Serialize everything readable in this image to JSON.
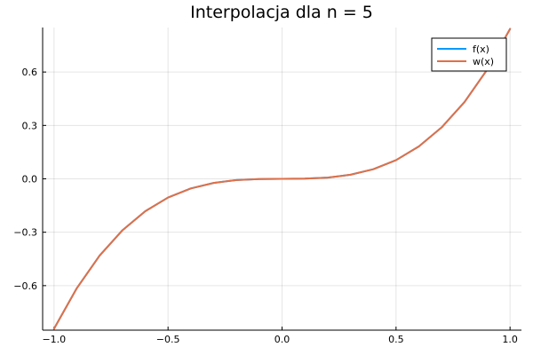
{
  "chart_data": {
    "type": "line",
    "title": "Interpolacja dla n = 5",
    "xlabel": "",
    "ylabel": "",
    "xlim": [
      -1.05,
      1.05
    ],
    "ylim": [
      -0.85,
      0.85
    ],
    "x_ticks": [
      -1.0,
      -0.5,
      0.0,
      0.5,
      1.0
    ],
    "x_tick_labels": [
      "−1.0",
      "−0.5",
      "0.0",
      "0.5",
      "1.0"
    ],
    "y_ticks": [
      -0.6,
      -0.3,
      0.0,
      0.3,
      0.6
    ],
    "y_tick_labels": [
      "−0.6",
      "−0.3",
      "0.0",
      "0.3",
      "0.6"
    ],
    "grid": true,
    "legend_position": "top-right",
    "x": [
      -1.0,
      -0.9,
      -0.8,
      -0.7,
      -0.6,
      -0.5,
      -0.4,
      -0.3,
      -0.2,
      -0.1,
      0.0,
      0.1,
      0.2,
      0.3,
      0.4,
      0.5,
      0.6,
      0.7,
      0.8,
      0.9,
      1.0
    ],
    "series": [
      {
        "name": "f(x)",
        "color": "#009AFA",
        "values": [
          -0.842,
          -0.614,
          -0.431,
          -0.289,
          -0.182,
          -0.105,
          -0.054,
          -0.023,
          -0.007,
          -0.001,
          0.0,
          0.001,
          0.007,
          0.023,
          0.054,
          0.105,
          0.182,
          0.289,
          0.431,
          0.614,
          0.842
        ]
      },
      {
        "name": "w(x)",
        "color": "#E26F46",
        "values": [
          -0.842,
          -0.614,
          -0.431,
          -0.289,
          -0.182,
          -0.105,
          -0.054,
          -0.023,
          -0.007,
          -0.001,
          0.0,
          0.001,
          0.007,
          0.023,
          0.054,
          0.105,
          0.182,
          0.289,
          0.431,
          0.614,
          0.842
        ]
      }
    ]
  }
}
